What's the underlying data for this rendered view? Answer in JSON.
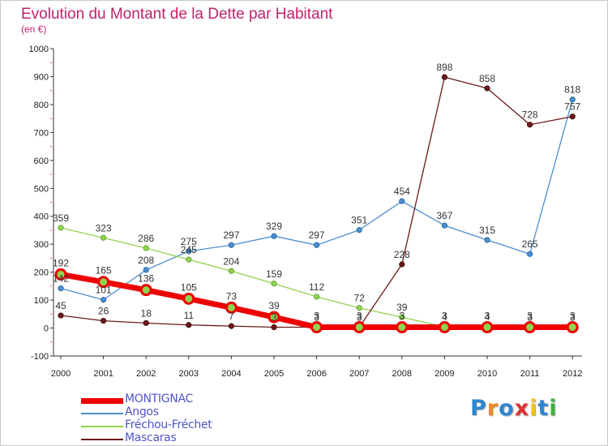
{
  "chart_data": {
    "type": "line",
    "title": "Evolution du Montant de la Dette par Habitant",
    "subtitle": "(en €)",
    "xlabel": "",
    "ylabel": "",
    "x": [
      "2000",
      "2001",
      "2002",
      "2003",
      "2004",
      "2005",
      "2006",
      "2007",
      "2008",
      "2009",
      "2010",
      "2011",
      "2012"
    ],
    "ylim": [
      -100,
      1000
    ],
    "yticks": [
      "-100",
      "0",
      "100",
      "200",
      "300",
      "400",
      "500",
      "600",
      "700",
      "800",
      "900",
      "1000"
    ],
    "grid": "off",
    "legend_position": "bottom-left",
    "series": [
      {
        "name": "MONTIGNAC",
        "color": "#ee0000",
        "values": [
          192,
          165,
          136,
          105,
          73,
          39,
          3,
          3,
          3,
          3,
          3,
          3,
          3
        ],
        "labels": [
          "192",
          "165",
          "136",
          "105",
          "73",
          "39",
          "3",
          "3",
          "3",
          "3",
          "3",
          "3",
          "3"
        ]
      },
      {
        "name": "Angos",
        "color": "#4a8fd0",
        "values": [
          142,
          101,
          208,
          275,
          297,
          329,
          297,
          351,
          454,
          367,
          315,
          265,
          818
        ],
        "labels": [
          "142",
          "101",
          "208",
          "275",
          "297",
          "329",
          "297",
          "351",
          "454",
          "367",
          "315",
          "265",
          "818"
        ]
      },
      {
        "name": "Fréchou-Fréchet",
        "color": "#8fd34f",
        "values": [
          359,
          323,
          286,
          245,
          204,
          159,
          112,
          72,
          39,
          4,
          4,
          3,
          3
        ],
        "labels": [
          "359",
          "323",
          "286",
          "245",
          "204",
          "159",
          "112",
          "72",
          "39",
          "4",
          "4",
          "3",
          "3"
        ]
      },
      {
        "name": "Mascaras",
        "color": "#6b1a1a",
        "values": [
          45,
          26,
          18,
          11,
          7,
          3,
          3,
          3,
          228,
          898,
          858,
          728,
          757
        ],
        "labels": [
          "45",
          "26",
          "18",
          "11",
          "7",
          "3",
          "3",
          "3",
          "228",
          "898",
          "858",
          "728",
          "757"
        ]
      }
    ]
  },
  "logo": {
    "letters": [
      "P",
      "r",
      "o",
      "x",
      "i",
      "t",
      "i"
    ],
    "colors": [
      "#2e86d0",
      "#f08a20",
      "#2e86d0",
      "#e03030",
      "#f0c020",
      "#2e86d0",
      "#40b040"
    ]
  }
}
